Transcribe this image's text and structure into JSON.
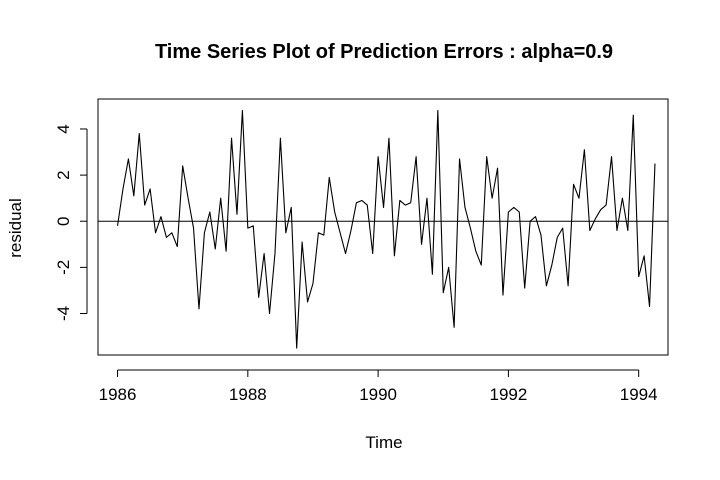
{
  "chart_data": {
    "type": "line",
    "title": "Time Series Plot of Prediction Errors : alpha=0.9",
    "xlabel": "Time",
    "ylabel": "residual",
    "xlim": [
      1985.7,
      1994.45
    ],
    "ylim": [
      -5.8,
      5.3
    ],
    "x_start": 1986.0,
    "x_step": 0.08333333,
    "x_ticks": [
      1986,
      1988,
      1990,
      1992,
      1994
    ],
    "x_tick_labels": [
      "1986",
      "1988",
      "1990",
      "1992",
      "1994"
    ],
    "y_ticks": [
      -4,
      -2,
      0,
      2,
      4
    ],
    "y_tick_labels": [
      "-4",
      "-2",
      "0",
      "2",
      "4"
    ],
    "reference_line_y": 0,
    "series": [
      {
        "name": "residual",
        "values": [
          -0.2,
          1.4,
          2.7,
          1.1,
          3.8,
          0.7,
          1.4,
          -0.5,
          0.2,
          -0.7,
          -0.5,
          -1.1,
          2.4,
          1.0,
          -0.3,
          -3.8,
          -0.5,
          0.4,
          -1.2,
          1.0,
          -1.3,
          3.6,
          0.3,
          4.8,
          -0.3,
          -0.2,
          -3.3,
          -1.4,
          -4.0,
          -1.4,
          3.6,
          -0.5,
          0.6,
          -5.5,
          -0.9,
          -3.5,
          -2.7,
          -0.5,
          -0.6,
          1.9,
          0.4,
          -0.5,
          -1.4,
          -0.4,
          0.8,
          0.9,
          0.7,
          -1.4,
          2.8,
          0.6,
          3.6,
          -1.5,
          0.9,
          0.7,
          0.8,
          2.8,
          -1.0,
          1.0,
          -2.3,
          4.8,
          -3.1,
          -2.0,
          -4.6,
          2.7,
          0.6,
          -0.3,
          -1.3,
          -1.9,
          2.8,
          1.0,
          2.3,
          -3.2,
          0.4,
          0.6,
          0.4,
          -2.9,
          0.0,
          0.2,
          -0.6,
          -2.8,
          -1.9,
          -0.7,
          -0.3,
          -2.8,
          1.6,
          1.0,
          3.1,
          -0.4,
          0.1,
          0.5,
          0.7,
          2.8,
          -0.4,
          1.0,
          -0.4,
          4.6,
          -2.4,
          -1.5,
          -3.7,
          2.5
        ]
      }
    ]
  }
}
